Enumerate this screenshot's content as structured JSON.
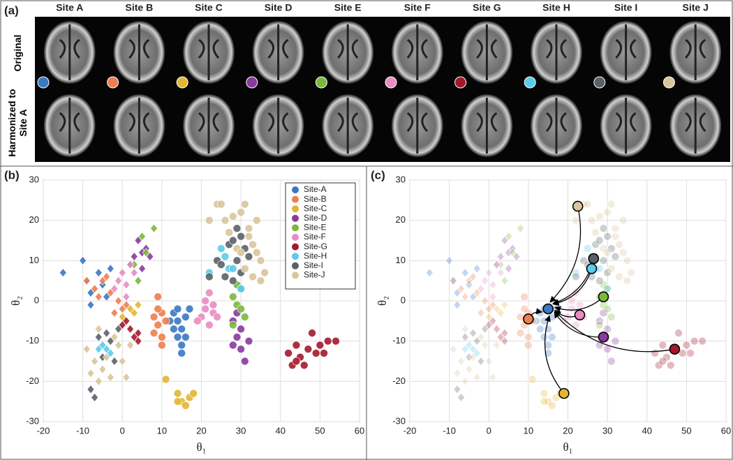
{
  "panel_a": {
    "label": "(a)",
    "sites": [
      "Site A",
      "Site B",
      "Site C",
      "Site D",
      "Site E",
      "Site F",
      "Site G",
      "Site H",
      "Site I",
      "Site J"
    ],
    "rows": [
      "Original",
      "Harmonized to Site A"
    ]
  },
  "chart_data": [
    {
      "type": "scatter",
      "panel_label": "(b)",
      "xlabel": "θ₁",
      "ylabel": "θ₂",
      "xlim": [
        -20,
        60
      ],
      "ylim": [
        -30,
        30
      ],
      "xticks": [
        -20,
        -10,
        0,
        10,
        20,
        30,
        40,
        50,
        60
      ],
      "yticks": [
        -30,
        -20,
        -10,
        0,
        10,
        20,
        30
      ],
      "grid": true,
      "legend": "top-right",
      "series": [
        {
          "name": "Site-A",
          "color": "#3b78c2",
          "x": [
            13,
            14,
            15,
            16,
            17,
            14,
            15,
            13,
            16,
            15,
            12,
            14
          ],
          "y": [
            -3,
            -5,
            -7,
            -4,
            -2,
            -9,
            -11,
            -7,
            -9,
            -13,
            -5,
            -2
          ],
          "diamond_x": [
            -15,
            -10,
            -9,
            -8,
            -6,
            -5,
            -3,
            -4,
            -8
          ],
          "diamond_y": [
            7,
            10,
            5,
            2,
            7,
            4,
            8,
            1,
            -1
          ]
        },
        {
          "name": "Site-B",
          "color": "#ec7f4f",
          "x": [
            8,
            9,
            10,
            8,
            10,
            11,
            9,
            10,
            9
          ],
          "y": [
            -4,
            -6,
            -3,
            -8,
            -9,
            -5,
            1,
            -11,
            -2
          ],
          "diamond_x": [
            -9,
            -7,
            -5,
            -3,
            -1,
            0,
            -2,
            1,
            -4,
            -6
          ],
          "diamond_y": [
            5,
            3,
            5,
            2,
            0,
            -2,
            -3,
            -1,
            6,
            1
          ]
        },
        {
          "name": "Site-C",
          "color": "#e3b534",
          "x": [
            11,
            14,
            15,
            17,
            18,
            16,
            14
          ],
          "y": [
            -19.5,
            -23,
            -25,
            -24,
            -23,
            -26,
            -25
          ],
          "diamond_x": [
            0,
            2,
            3,
            4
          ],
          "diamond_y": [
            -4,
            -2,
            -3,
            -1
          ]
        },
        {
          "name": "Site-D",
          "color": "#8a3a9e",
          "x": [
            28,
            29,
            30,
            31,
            29,
            28,
            32,
            30
          ],
          "y": [
            -5,
            -9,
            -12,
            -15,
            -3,
            -11,
            -10,
            -7
          ],
          "diamond_x": [
            2,
            4,
            5,
            6,
            7,
            5,
            3
          ],
          "diamond_y": [
            9,
            15,
            12,
            13,
            11,
            8,
            11
          ]
        },
        {
          "name": "Site-E",
          "color": "#7cb83b",
          "x": [
            29,
            28,
            29,
            30,
            31,
            28,
            30
          ],
          "y": [
            4,
            1,
            -1,
            -2,
            -4,
            -6,
            3
          ],
          "diamond_x": [
            8,
            5,
            6,
            3,
            4
          ],
          "diamond_y": [
            18,
            16,
            12,
            9,
            5
          ]
        },
        {
          "name": "Site-F",
          "color": "#e88cc4",
          "x": [
            20,
            22,
            23,
            21,
            24,
            19,
            22,
            21,
            23
          ],
          "y": [
            -4,
            -6,
            -3,
            -2,
            -4,
            -5,
            2,
            0,
            -1
          ],
          "diamond_x": [
            1,
            2,
            0,
            -1,
            3,
            -2,
            1
          ],
          "diamond_y": [
            4,
            9,
            7,
            5,
            7,
            3,
            1
          ]
        },
        {
          "name": "Site-G",
          "color": "#a3192b",
          "x": [
            42,
            44,
            45,
            43,
            46,
            47,
            48,
            50,
            51,
            52,
            54,
            49,
            44
          ],
          "y": [
            -13,
            -11,
            -14,
            -16,
            -16,
            -12,
            -8,
            -11,
            -13,
            -10,
            -10,
            -13,
            -15
          ],
          "diamond_x": [
            0,
            2,
            3,
            4,
            1,
            4
          ],
          "diamond_y": [
            -6,
            -7,
            -9,
            -10,
            -5,
            -8
          ]
        },
        {
          "name": "Site-H",
          "color": "#5ccbec",
          "x": [
            25,
            26,
            27,
            28,
            22,
            30
          ],
          "y": [
            13,
            11,
            8,
            8,
            7,
            3
          ],
          "diamond_x": [
            -6,
            -5,
            -4,
            -3
          ],
          "diamond_y": [
            -12,
            -11,
            -12,
            -13
          ]
        },
        {
          "name": "Site-I",
          "color": "#5a6268",
          "x": [
            24,
            25,
            27,
            28,
            29,
            30,
            31,
            32,
            26,
            28,
            30,
            22,
            29
          ],
          "y": [
            10,
            9,
            14,
            15,
            18,
            16,
            13,
            11,
            6,
            5,
            7,
            6,
            10
          ],
          "diamond_x": [
            -7,
            -8,
            -5,
            -4,
            -3,
            -6,
            -2,
            -1
          ],
          "diamond_y": [
            -24,
            -22,
            -14,
            -8,
            -10,
            -9,
            -15,
            -7
          ]
        },
        {
          "name": "Site-J",
          "color": "#d8c59a",
          "x": [
            22,
            24,
            25,
            26,
            28,
            30,
            31,
            32,
            33,
            34,
            35,
            36,
            35,
            33,
            31,
            27,
            29,
            32,
            34,
            30
          ],
          "y": [
            20,
            24,
            24,
            20,
            21,
            22,
            24,
            18,
            14,
            12,
            10,
            7,
            5,
            6,
            8,
            17,
            13,
            16,
            20,
            12
          ],
          "diamond_x": [
            -9,
            -8,
            -7,
            -6,
            -5,
            -4,
            -3,
            -1,
            0,
            1,
            -2,
            2,
            -6
          ],
          "diamond_y": [
            -12,
            -18,
            -15,
            -20,
            -17,
            -14,
            -19,
            -11,
            -15,
            -19,
            -9,
            -11,
            -7
          ]
        }
      ]
    },
    {
      "type": "harmonization",
      "panel_label": "(c)",
      "xlabel": "θ₁",
      "ylabel": "θ₂",
      "xlim": [
        -20,
        60
      ],
      "ylim": [
        -30,
        30
      ],
      "xticks": [
        -20,
        -10,
        0,
        10,
        20,
        30,
        40,
        50,
        60
      ],
      "yticks": [
        -30,
        -20,
        -10,
        0,
        10,
        20,
        30
      ],
      "grid": true,
      "centroids": {
        "x": [
          15,
          10,
          19,
          29,
          29,
          23,
          47,
          26,
          26.5,
          22.5
        ],
        "y": [
          -2,
          -4.5,
          -23,
          -9,
          1,
          -3.5,
          -12,
          8,
          10.5,
          23.5
        ]
      }
    }
  ]
}
